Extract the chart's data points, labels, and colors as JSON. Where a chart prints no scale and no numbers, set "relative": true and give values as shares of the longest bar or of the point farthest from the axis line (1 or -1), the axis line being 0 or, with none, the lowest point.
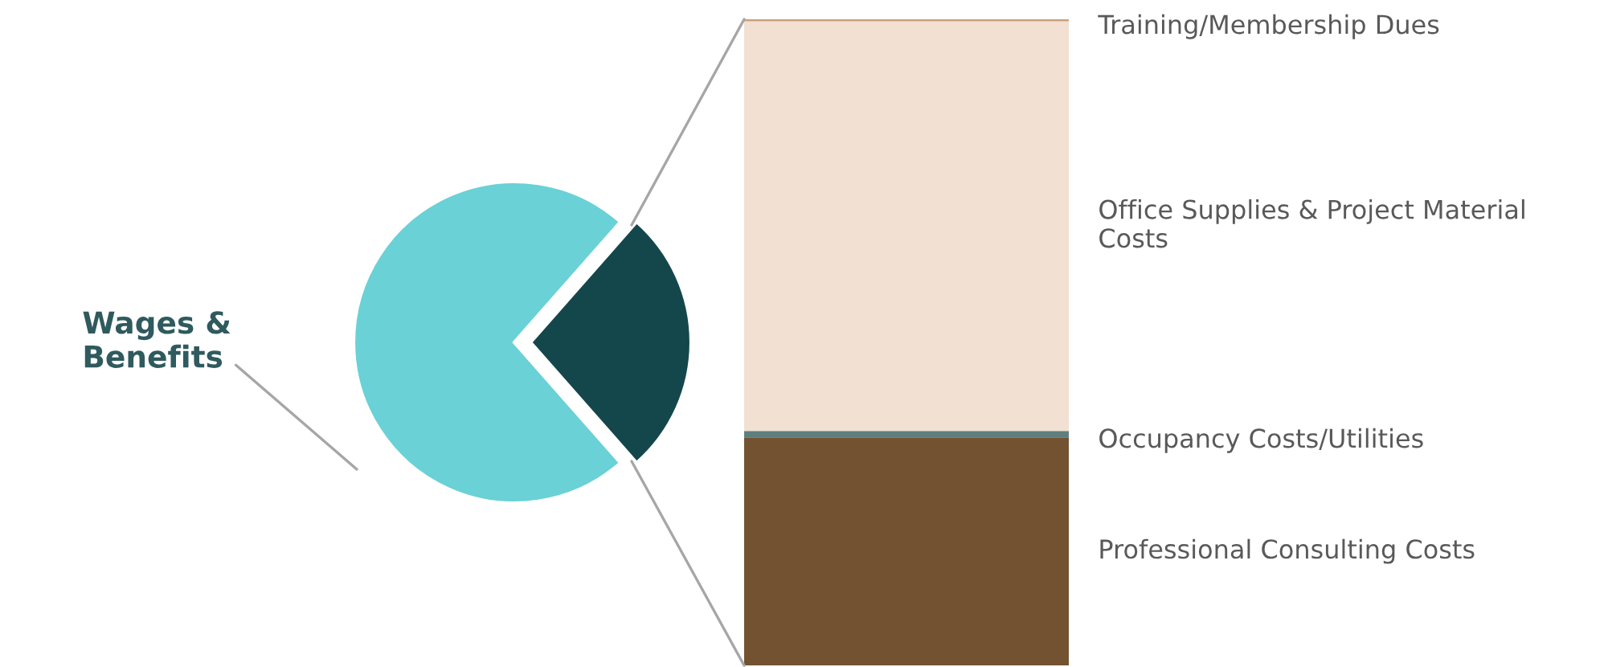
{
  "chart_data": [
    {
      "type": "pie",
      "categories": [
        "Wages & Benefits",
        null
      ],
      "values": [
        73,
        27
      ],
      "colors": [
        "#6ad1d6",
        "#14474c"
      ]
    },
    {
      "type": "bar",
      "stacked": true,
      "relative": true,
      "categories": [
        null
      ],
      "series": [
        {
          "name": "Professional Consulting Costs",
          "color": "#735232",
          "values": [
            0.353
          ]
        },
        {
          "name": "Occupancy Costs/Utilities",
          "color": "#5f7f7f",
          "values": [
            0.01
          ]
        },
        {
          "name": "Office Supplies & Project Material Costs",
          "color": "#f2e0d2",
          "values": [
            0.634
          ]
        },
        {
          "name": "Training/Membership Dues",
          "color": "#c8a07a",
          "values": [
            0.003
          ]
        }
      ]
    }
  ]
}
